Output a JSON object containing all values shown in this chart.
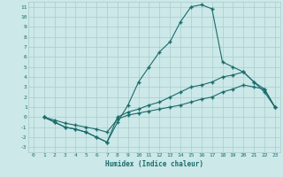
{
  "xlabel": "Humidex (Indice chaleur)",
  "background_color": "#cce8e8",
  "grid_color": "#aacccc",
  "line_color": "#1a6b6b",
  "xlim": [
    -0.5,
    23.5
  ],
  "ylim": [
    -3.5,
    11.5
  ],
  "xticks": [
    0,
    1,
    2,
    3,
    4,
    5,
    6,
    7,
    8,
    9,
    10,
    11,
    12,
    13,
    14,
    15,
    16,
    17,
    18,
    19,
    20,
    21,
    22,
    23
  ],
  "yticks": [
    -3,
    -2,
    -1,
    0,
    1,
    2,
    3,
    4,
    5,
    6,
    7,
    8,
    9,
    10,
    11
  ],
  "line1_x": [
    1,
    2,
    3,
    4,
    5,
    6,
    7,
    8,
    9,
    10,
    11,
    12,
    13,
    14,
    15,
    16,
    17,
    18,
    19,
    20,
    21,
    22,
    23
  ],
  "line1_y": [
    0,
    -0.5,
    -1.0,
    -1.2,
    -1.5,
    -2.0,
    -2.5,
    -0.5,
    1.2,
    3.5,
    5.0,
    6.5,
    7.5,
    9.5,
    11.0,
    11.2,
    10.8,
    5.5,
    5.0,
    4.5,
    3.5,
    2.8,
    1.0
  ],
  "line2_x": [
    1,
    2,
    3,
    4,
    5,
    6,
    7,
    8,
    9,
    10,
    11,
    12,
    13,
    14,
    15,
    16,
    17,
    18,
    19,
    20,
    21,
    22,
    23
  ],
  "line2_y": [
    0,
    -0.5,
    -1.0,
    -1.2,
    -1.5,
    -2.0,
    -2.5,
    0.0,
    0.5,
    0.8,
    1.2,
    1.5,
    2.0,
    2.5,
    3.0,
    3.2,
    3.5,
    4.0,
    4.2,
    4.5,
    3.5,
    2.5,
    1.0
  ],
  "line3_x": [
    1,
    2,
    3,
    4,
    5,
    6,
    7,
    8,
    9,
    10,
    11,
    12,
    13,
    14,
    15,
    16,
    17,
    18,
    19,
    20,
    21,
    22,
    23
  ],
  "line3_y": [
    0,
    -0.3,
    -0.6,
    -0.8,
    -1.0,
    -1.2,
    -1.5,
    -0.2,
    0.2,
    0.4,
    0.6,
    0.8,
    1.0,
    1.2,
    1.5,
    1.8,
    2.0,
    2.5,
    2.8,
    3.2,
    3.0,
    2.8,
    1.0
  ]
}
